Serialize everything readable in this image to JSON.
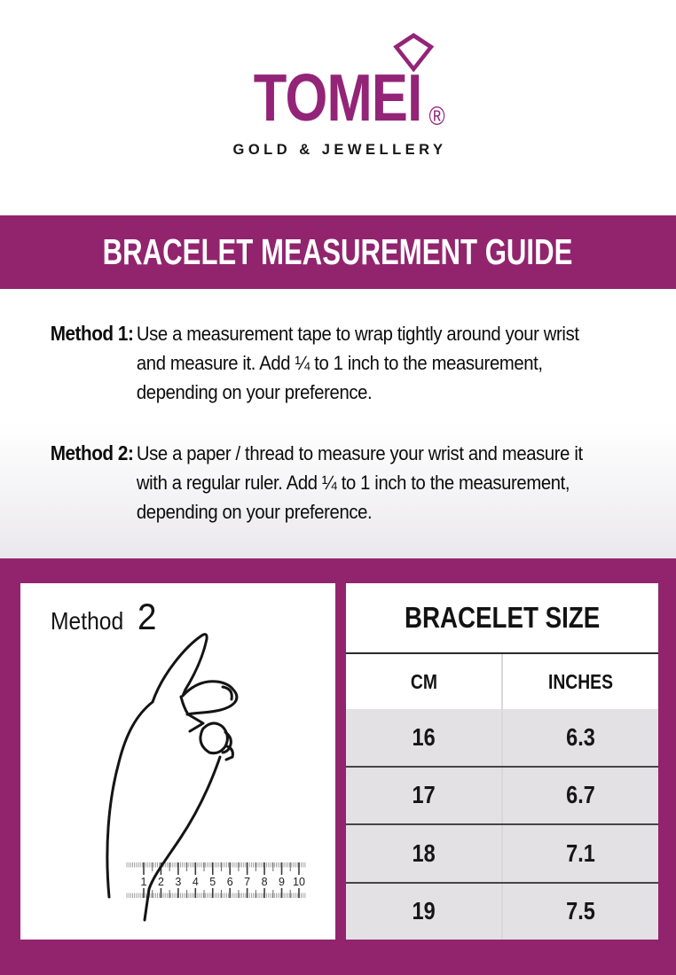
{
  "logo": {
    "brand": "TOMEI",
    "registered_mark": "®",
    "tagline": "GOLD & JEWELLERY"
  },
  "banner": {
    "title": "BRACELET MEASUREMENT GUIDE"
  },
  "instructions": [
    {
      "label": "Method 1:",
      "lines": [
        "Use a measurement tape to wrap tightly around your wrist",
        "and measure it. Add ¼ to 1 inch to the measurement,",
        "depending on your preference."
      ]
    },
    {
      "label": "Method 2:",
      "lines": [
        "Use a paper / thread to measure your wrist and measure it",
        "with a regular ruler. Add ¼ to 1 inch to the measurement,",
        "depending on your preference."
      ]
    }
  ],
  "method_diagram": {
    "label_text": "Method",
    "label_number": "2",
    "ruler_numbers": [
      "1",
      "2",
      "3",
      "4",
      "5",
      "6",
      "7",
      "8",
      "9",
      "10"
    ]
  },
  "size_table": {
    "title": "BRACELET SIZE",
    "columns": [
      "CM",
      "INCHES"
    ],
    "rows": [
      [
        "16",
        "6.3"
      ],
      [
        "17",
        "6.7"
      ],
      [
        "18",
        "7.1"
      ],
      [
        "19",
        "7.5"
      ]
    ]
  },
  "colors": {
    "brand_magenta": "#92246e",
    "logo_magenta": "#932478",
    "table_row_gray": "#e3e1e4",
    "text_black": "#121212"
  }
}
